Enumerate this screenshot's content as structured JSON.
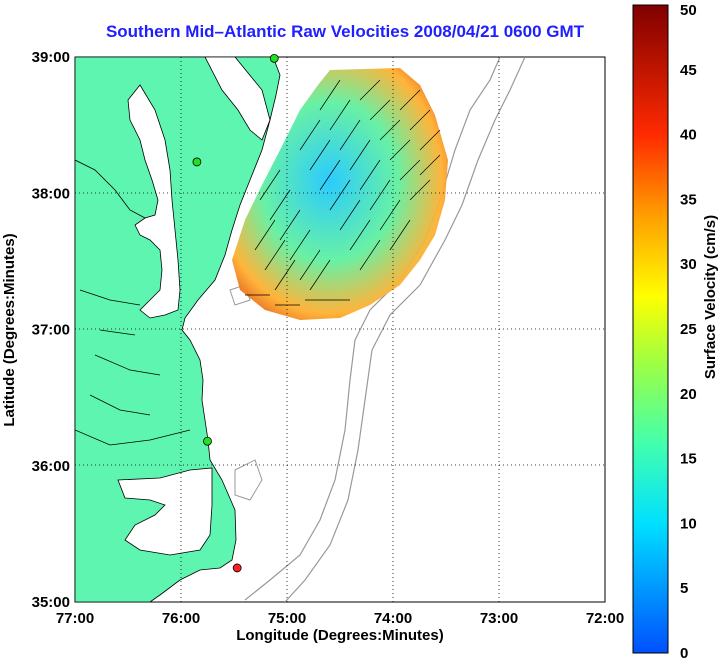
{
  "title": "Southern Mid–Atlantic Raw Velocities 2008/04/21 0600 GMT",
  "xlabel": "Longitude (Degrees:Minutes)",
  "ylabel": "Latitude (Degrees:Minutes)",
  "x_ticks": [
    "77:00",
    "76:00",
    "75:00",
    "74:00",
    "73:00",
    "72:00"
  ],
  "y_ticks": [
    "39:00",
    "38:00",
    "37:00",
    "36:00",
    "35:00"
  ],
  "colorbar": {
    "label": "Surface Velocity (cm/s)",
    "ticks": [
      "50",
      "45",
      "40",
      "35",
      "30",
      "25",
      "20",
      "15",
      "10",
      "5",
      "0"
    ]
  },
  "colors": {
    "land": "#5ef5b0",
    "water": "#ffffff",
    "coastline": "#000000",
    "bathymetry": "#999999",
    "grid": "#000000",
    "title": "#1f1fff",
    "station_green": "#22e022",
    "station_red": "#ff2020"
  },
  "stations": [
    {
      "lon": -75.12,
      "lat": 38.99,
      "color": "green"
    },
    {
      "lon": -75.85,
      "lat": 38.23,
      "color": "green"
    },
    {
      "lon": -75.75,
      "lat": 36.18,
      "color": "green"
    },
    {
      "lon": -75.47,
      "lat": 35.25,
      "color": "red"
    }
  ]
}
